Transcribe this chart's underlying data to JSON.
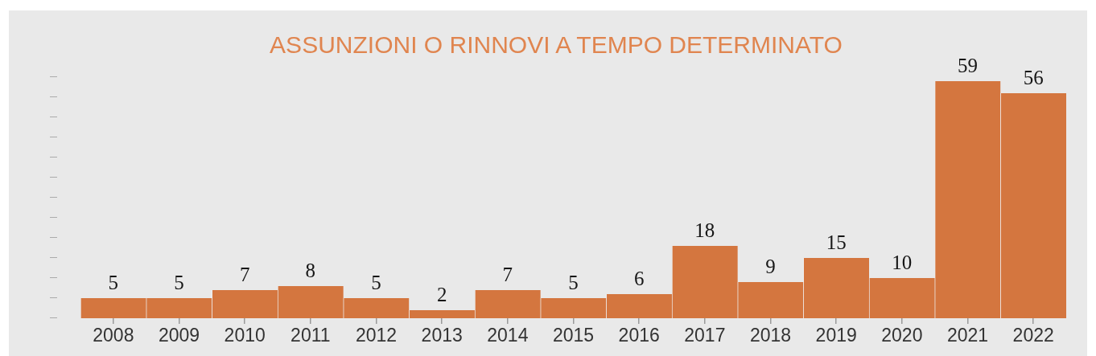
{
  "chart_data": {
    "type": "bar",
    "title": "ASSUNZIONI O RINNOVI A TEMPO DETERMINATO",
    "categories": [
      "2008",
      "2009",
      "2010",
      "2011",
      "2012",
      "2013",
      "2014",
      "2015",
      "2016",
      "2017",
      "2018",
      "2019",
      "2020",
      "2021",
      "2022"
    ],
    "values": [
      5,
      5,
      7,
      8,
      5,
      2,
      7,
      5,
      6,
      18,
      9,
      15,
      10,
      59,
      56
    ],
    "color": "#d4763f",
    "data_labels": true,
    "tick_labels": "x"
  }
}
